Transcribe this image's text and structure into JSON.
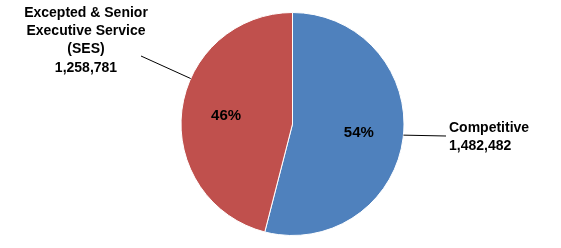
{
  "chart_data": {
    "type": "pie",
    "categories": [
      "Competitive",
      "Excepted & Senior Executive Service (SES)"
    ],
    "values": [
      54,
      46
    ],
    "value_labels": [
      "54%",
      "46%"
    ],
    "counts": [
      1482482,
      1258781
    ],
    "colors": [
      "#4f81bd",
      "#c0504d"
    ],
    "data_labels": true
  }
}
